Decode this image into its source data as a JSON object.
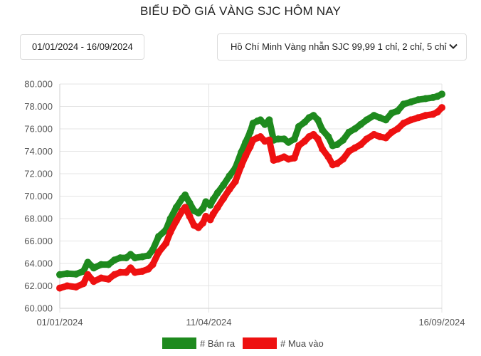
{
  "page": {
    "title": "BIỂU ĐỒ GIÁ VÀNG SJC HÔM NAY",
    "date_range": "01/01/2024 - 16/09/2024",
    "product_select": "Hồ Chí Minh Vàng nhẫn SJC 99,99 1 chỉ, 2 chỉ, 5 chỉ",
    "icons": {
      "dropdown": "chevron-down-icon"
    }
  },
  "colors": {
    "sell": "#1e8a1e",
    "buy": "#ee1111",
    "grid": "#e4e4e4"
  },
  "chart_data": {
    "type": "line",
    "title": "BIỂU ĐỒ GIÁ VÀNG SJC HÔM NAY",
    "xlabel": "",
    "ylabel": "",
    "x_ticks": [
      "01/01/2024",
      "11/04/2024",
      "16/09/2024"
    ],
    "y_ticks": [
      "60.000",
      "62.000",
      "64.000",
      "66.000",
      "68.000",
      "70.000",
      "72.000",
      "74.000",
      "76.000",
      "78.000",
      "80.000"
    ],
    "ylim": [
      60000,
      80000
    ],
    "xlim": [
      "2024-01-01",
      "2024-09-16"
    ],
    "grid": true,
    "legend_position": "bottom",
    "series": [
      {
        "name": "# Bán ra",
        "color": "#1e8a1e",
        "points": [
          [
            "2024-01-01",
            63000
          ],
          [
            "2024-01-06",
            63100
          ],
          [
            "2024-01-12",
            63050
          ],
          [
            "2024-01-17",
            63300
          ],
          [
            "2024-01-20",
            64100
          ],
          [
            "2024-01-24",
            63600
          ],
          [
            "2024-01-29",
            63900
          ],
          [
            "2024-02-03",
            63900
          ],
          [
            "2024-02-07",
            64300
          ],
          [
            "2024-02-11",
            64500
          ],
          [
            "2024-02-15",
            64500
          ],
          [
            "2024-02-18",
            64800
          ],
          [
            "2024-02-21",
            64500
          ],
          [
            "2024-02-26",
            64600
          ],
          [
            "2024-03-01",
            64700
          ],
          [
            "2024-03-04",
            65200
          ],
          [
            "2024-03-08",
            66400
          ],
          [
            "2024-03-13",
            67000
          ],
          [
            "2024-03-16",
            68000
          ],
          [
            "2024-03-20",
            69000
          ],
          [
            "2024-03-24",
            69800
          ],
          [
            "2024-03-26",
            70100
          ],
          [
            "2024-03-29",
            69400
          ],
          [
            "2024-04-01",
            68700
          ],
          [
            "2024-04-04",
            68500
          ],
          [
            "2024-04-07",
            68900
          ],
          [
            "2024-04-09",
            69500
          ],
          [
            "2024-04-12",
            69200
          ],
          [
            "2024-04-14",
            69700
          ],
          [
            "2024-04-17",
            70300
          ],
          [
            "2024-04-21",
            71000
          ],
          [
            "2024-04-25",
            71800
          ],
          [
            "2024-04-29",
            72500
          ],
          [
            "2024-05-03",
            73900
          ],
          [
            "2024-05-06",
            74800
          ],
          [
            "2024-05-09",
            75700
          ],
          [
            "2024-05-11",
            76500
          ],
          [
            "2024-05-14",
            76700
          ],
          [
            "2024-05-16",
            76800
          ],
          [
            "2024-05-19",
            76400
          ],
          [
            "2024-05-22",
            76800
          ],
          [
            "2024-05-25",
            75000
          ],
          [
            "2024-05-28",
            75100
          ],
          [
            "2024-06-01",
            75100
          ],
          [
            "2024-06-04",
            74800
          ],
          [
            "2024-06-08",
            75100
          ],
          [
            "2024-06-11",
            76200
          ],
          [
            "2024-06-15",
            76600
          ],
          [
            "2024-06-18",
            77000
          ],
          [
            "2024-06-21",
            77200
          ],
          [
            "2024-06-24",
            76800
          ],
          [
            "2024-06-27",
            75900
          ],
          [
            "2024-07-01",
            75300
          ],
          [
            "2024-07-04",
            74500
          ],
          [
            "2024-07-07",
            74600
          ],
          [
            "2024-07-11",
            75000
          ],
          [
            "2024-07-15",
            75700
          ],
          [
            "2024-07-19",
            76000
          ],
          [
            "2024-07-23",
            76400
          ],
          [
            "2024-07-27",
            76800
          ],
          [
            "2024-08-01",
            77200
          ],
          [
            "2024-08-05",
            77000
          ],
          [
            "2024-08-09",
            76800
          ],
          [
            "2024-08-13",
            77400
          ],
          [
            "2024-08-17",
            77600
          ],
          [
            "2024-08-21",
            78200
          ],
          [
            "2024-08-26",
            78400
          ],
          [
            "2024-08-31",
            78600
          ],
          [
            "2024-09-05",
            78700
          ],
          [
            "2024-09-10",
            78800
          ],
          [
            "2024-09-13",
            78900
          ],
          [
            "2024-09-16",
            79100
          ]
        ]
      },
      {
        "name": "# Mua vào",
        "color": "#ee1111",
        "points": [
          [
            "2024-01-01",
            61800
          ],
          [
            "2024-01-06",
            62000
          ],
          [
            "2024-01-12",
            61900
          ],
          [
            "2024-01-17",
            62200
          ],
          [
            "2024-01-20",
            63000
          ],
          [
            "2024-01-24",
            62400
          ],
          [
            "2024-01-29",
            62700
          ],
          [
            "2024-02-03",
            62600
          ],
          [
            "2024-02-07",
            63000
          ],
          [
            "2024-02-11",
            63200
          ],
          [
            "2024-02-15",
            63200
          ],
          [
            "2024-02-18",
            63600
          ],
          [
            "2024-02-21",
            63200
          ],
          [
            "2024-02-26",
            63300
          ],
          [
            "2024-03-01",
            63500
          ],
          [
            "2024-03-04",
            63900
          ],
          [
            "2024-03-08",
            65000
          ],
          [
            "2024-03-13",
            65800
          ],
          [
            "2024-03-16",
            66800
          ],
          [
            "2024-03-20",
            67800
          ],
          [
            "2024-03-24",
            68700
          ],
          [
            "2024-03-26",
            69000
          ],
          [
            "2024-03-29",
            68200
          ],
          [
            "2024-04-01",
            67400
          ],
          [
            "2024-04-04",
            67200
          ],
          [
            "2024-04-07",
            67600
          ],
          [
            "2024-04-09",
            68200
          ],
          [
            "2024-04-12",
            67900
          ],
          [
            "2024-04-14",
            68400
          ],
          [
            "2024-04-17",
            69000
          ],
          [
            "2024-04-21",
            69800
          ],
          [
            "2024-04-25",
            70600
          ],
          [
            "2024-04-29",
            71300
          ],
          [
            "2024-05-03",
            72700
          ],
          [
            "2024-05-06",
            73600
          ],
          [
            "2024-05-09",
            74400
          ],
          [
            "2024-05-11",
            75000
          ],
          [
            "2024-05-14",
            75200
          ],
          [
            "2024-05-16",
            75300
          ],
          [
            "2024-05-19",
            74900
          ],
          [
            "2024-05-22",
            75000
          ],
          [
            "2024-05-25",
            73200
          ],
          [
            "2024-05-28",
            73300
          ],
          [
            "2024-06-01",
            73500
          ],
          [
            "2024-06-04",
            73300
          ],
          [
            "2024-06-08",
            73400
          ],
          [
            "2024-06-11",
            74500
          ],
          [
            "2024-06-15",
            74900
          ],
          [
            "2024-06-18",
            75300
          ],
          [
            "2024-06-21",
            75500
          ],
          [
            "2024-06-24",
            75100
          ],
          [
            "2024-06-27",
            74200
          ],
          [
            "2024-07-01",
            73500
          ],
          [
            "2024-07-04",
            72800
          ],
          [
            "2024-07-07",
            72900
          ],
          [
            "2024-07-11",
            73300
          ],
          [
            "2024-07-15",
            74000
          ],
          [
            "2024-07-19",
            74300
          ],
          [
            "2024-07-23",
            74600
          ],
          [
            "2024-07-27",
            75100
          ],
          [
            "2024-08-01",
            75500
          ],
          [
            "2024-08-05",
            75300
          ],
          [
            "2024-08-09",
            75200
          ],
          [
            "2024-08-13",
            75700
          ],
          [
            "2024-08-17",
            76000
          ],
          [
            "2024-08-21",
            76500
          ],
          [
            "2024-08-26",
            76800
          ],
          [
            "2024-08-31",
            77000
          ],
          [
            "2024-09-05",
            77200
          ],
          [
            "2024-09-10",
            77300
          ],
          [
            "2024-09-13",
            77500
          ],
          [
            "2024-09-16",
            77900
          ]
        ]
      }
    ]
  }
}
